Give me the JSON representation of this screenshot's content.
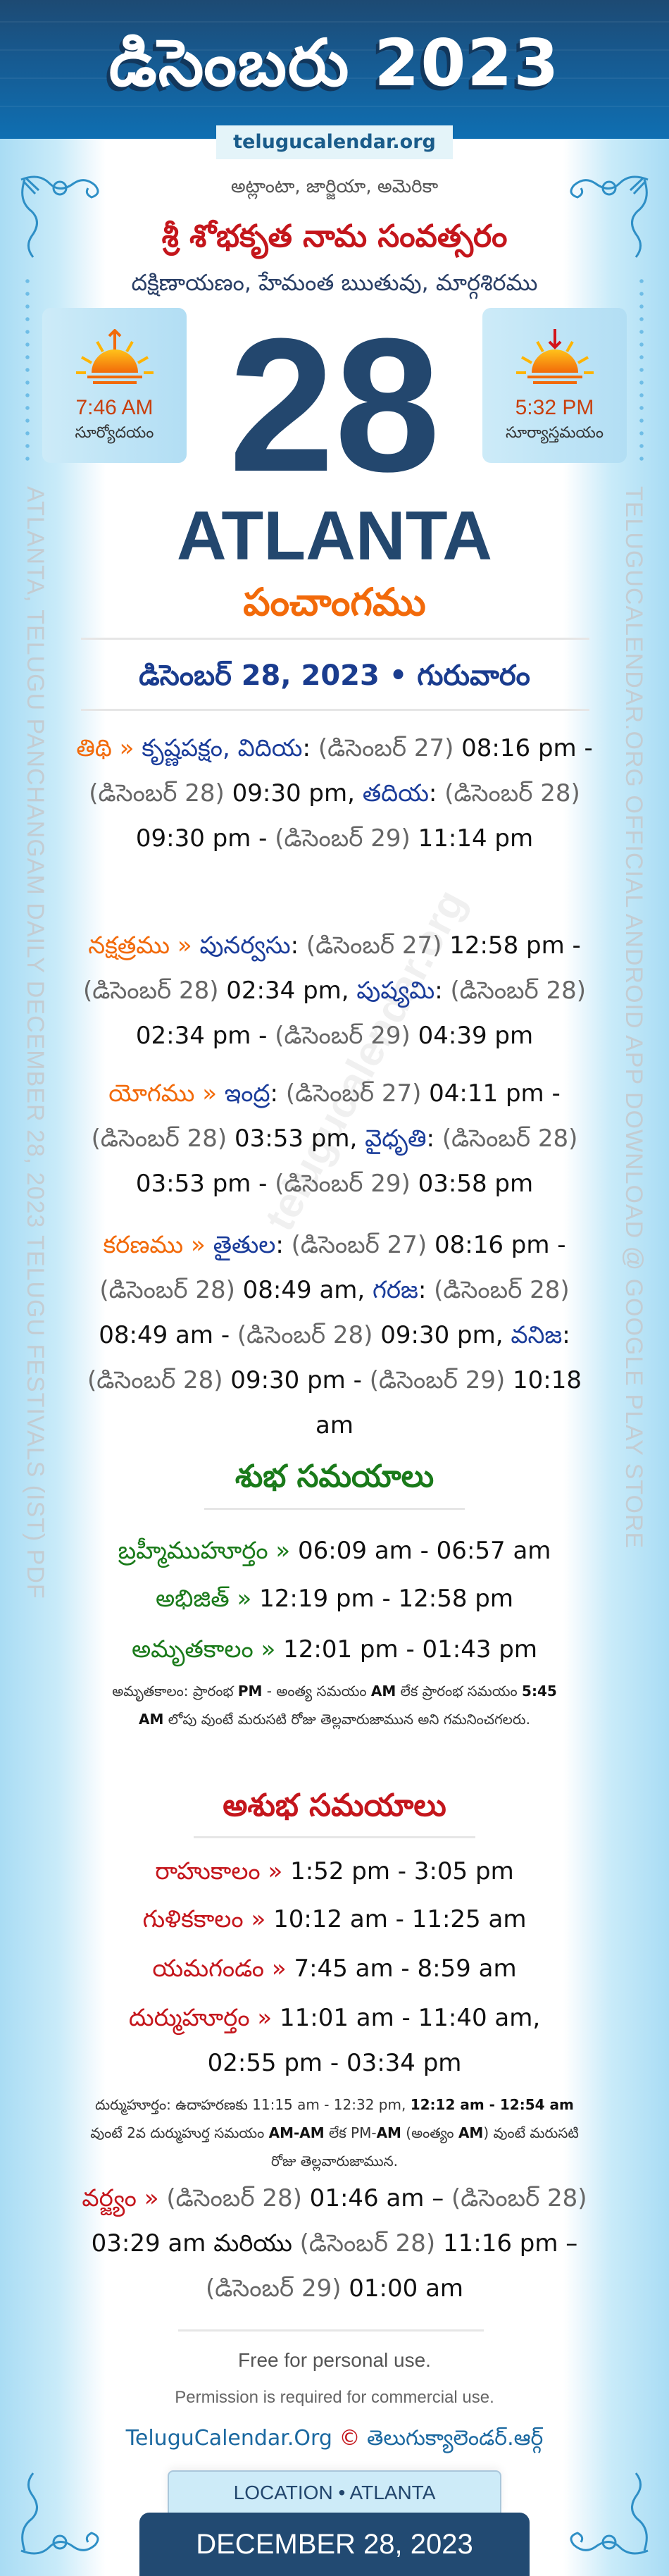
{
  "header": {
    "title": "డిసెంబరు 2023",
    "site": "telugucalendar.org"
  },
  "location_line": "అట్లాంటా, జార్జియా, అమెరికా",
  "samvatsaram": "శ్రీ శోభకృత నామ సంవత్సరం",
  "ayana": "దక్షిణాయణం, హేమంత ఋతువు, మార్గశిరము",
  "sunrise": {
    "time": "7:46 AM",
    "label": "సూర్యోదయం",
    "icon": "sunrise-icon"
  },
  "sunset": {
    "time": "5:32 PM",
    "label": "సూర్యాస్తమయం",
    "icon": "sunset-icon"
  },
  "day": "28",
  "city": "ATLANTA",
  "panchangam": "పంచాంగము",
  "date_heading": "డిసెంబర్ 28, 2023 • గురువారం",
  "side_text_left": "ATLANTA, TELUGU PANCHANGAM DAILY DECEMBER 28, 2023 TELUGU FESTIVALS (IST) PDF",
  "side_text_right": "TELUGUCALENDAR.ORG OFFICIAL ANDROID APP DOWNLOAD @ GOOGLE PLAY STORE",
  "watermark": "telugucalendar.org",
  "panchang": [
    {
      "key": "tithi",
      "segments": [
        [
          "lab",
          "తిథి"
        ],
        [
          "lab",
          " » "
        ],
        [
          "nm",
          "కృష్ణపక్షం, విదియ"
        ],
        [
          "tm",
          ": "
        ],
        [
          "dt",
          "(డిసెంబర్ 27)"
        ],
        [
          "tm",
          " 08:16 pm - "
        ],
        [
          "dt",
          "(డిసెంబర్ 28)"
        ],
        [
          "tm",
          " 09:30 pm, "
        ],
        [
          "nm",
          "తదియ"
        ],
        [
          "tm",
          ": "
        ],
        [
          "dt",
          "(డిసెంబర్ 28)"
        ],
        [
          "tm",
          " 09:30 pm - "
        ],
        [
          "dt",
          "(డిసెంబర్ 29)"
        ],
        [
          "tm",
          " 11:14 pm"
        ]
      ]
    },
    {
      "key": "nakshatram",
      "segments": [
        [
          "lab",
          "నక్షత్రము"
        ],
        [
          "lab",
          " » "
        ],
        [
          "nm",
          "పునర్వసు"
        ],
        [
          "tm",
          ": "
        ],
        [
          "dt",
          "(డిసెంబర్ 27)"
        ],
        [
          "tm",
          " 12:58 pm - "
        ],
        [
          "dt",
          "(డిసెంబర్ 28)"
        ],
        [
          "tm",
          " 02:34 pm, "
        ],
        [
          "nm",
          "పుష్యమి"
        ],
        [
          "tm",
          ": "
        ],
        [
          "dt",
          "(డిసెంబర్ 28)"
        ],
        [
          "tm",
          " 02:34 pm - "
        ],
        [
          "dt",
          "(డిసెంబర్ 29)"
        ],
        [
          "tm",
          " 04:39 pm"
        ]
      ]
    },
    {
      "key": "yogam",
      "segments": [
        [
          "lab",
          "యోగము"
        ],
        [
          "lab",
          " » "
        ],
        [
          "nm",
          "ఇంద్ర"
        ],
        [
          "tm",
          ": "
        ],
        [
          "dt",
          "(డిసెంబర్ 27)"
        ],
        [
          "tm",
          " 04:11 pm - "
        ],
        [
          "dt",
          "(డిసెంబర్ 28)"
        ],
        [
          "tm",
          " 03:53 pm, "
        ],
        [
          "nm",
          "వైధృతి"
        ],
        [
          "tm",
          ": "
        ],
        [
          "dt",
          "(డిసెంబర్ 28)"
        ],
        [
          "tm",
          " 03:53 pm - "
        ],
        [
          "dt",
          "(డిసెంబర్ 29)"
        ],
        [
          "tm",
          " 03:58 pm"
        ]
      ]
    },
    {
      "key": "karanam",
      "segments": [
        [
          "lab",
          "కరణము"
        ],
        [
          "lab",
          " » "
        ],
        [
          "nm",
          "తైతుల"
        ],
        [
          "tm",
          ": "
        ],
        [
          "dt",
          "(డిసెంబర్ 27)"
        ],
        [
          "tm",
          " 08:16 pm - "
        ],
        [
          "dt",
          "(డిసెంబర్ 28)"
        ],
        [
          "tm",
          " 08:49 am, "
        ],
        [
          "nm",
          "గరజ"
        ],
        [
          "tm",
          ": "
        ],
        [
          "dt",
          "(డిసెంబర్ 28)"
        ],
        [
          "tm",
          " 08:49 am - "
        ],
        [
          "dt",
          "(డిసెంబర్ 28)"
        ],
        [
          "tm",
          " 09:30 pm, "
        ],
        [
          "nm",
          "వనిజ"
        ],
        [
          "tm",
          ": "
        ],
        [
          "dt",
          "(డిసెంబర్ 28)"
        ],
        [
          "tm",
          " 09:30 pm - "
        ],
        [
          "dt",
          "(డిసెంబర్ 29)"
        ],
        [
          "tm",
          " 10:18 am"
        ]
      ]
    }
  ],
  "subha": {
    "heading": "శుభ సమయాలు",
    "items": [
      {
        "label": "బ్రహ్మీముహూర్తం",
        "time": "06:09 am - 06:57 am"
      },
      {
        "label": "అభిజిత్",
        "time": "12:19 pm - 12:58 pm"
      },
      {
        "label": "అమృతకాలం",
        "time": "12:01 pm - 01:43 pm"
      }
    ],
    "note": [
      [
        "",
        "అమృతకాలం: ప్రారంభ "
      ],
      [
        "b",
        "PM"
      ],
      [
        "",
        " - అంత్య సమయం "
      ],
      [
        "b",
        "AM"
      ],
      [
        "",
        " లేక ప్రారంభ సమయం "
      ],
      [
        "b",
        "5:45 AM"
      ],
      [
        "",
        " లోపు వుంటే మరుసటి రోజు తెల్లవారుజామున అని గమనించగలరు."
      ]
    ]
  },
  "asubha": {
    "heading": "అశుభ సమయాలు",
    "items": [
      {
        "label": "రాహుకాలం",
        "time": "1:52 pm - 3:05 pm"
      },
      {
        "label": "గుళికకాలం",
        "time": "10:12 am - 11:25 am"
      },
      {
        "label": "యమగండం",
        "time": "7:45 am - 8:59 am"
      },
      {
        "label": "దుర్ముహూర్తం",
        "time": "11:01 am - 11:40 am, 02:55 pm - 03:34 pm"
      }
    ],
    "note": [
      [
        "",
        "దుర్ముహూర్తం: ఉదాహరణకు 11:15 am - 12:32 pm, "
      ],
      [
        "b",
        "12:12 am - 12:54 am"
      ],
      [
        "",
        " వుంటే 2వ దుర్ముహుర్త సమయం "
      ],
      [
        "b",
        "AM-AM"
      ],
      [
        "",
        " లేక PM-"
      ],
      [
        "b",
        "AM"
      ],
      [
        "",
        " (అంత్యం "
      ],
      [
        "b",
        "AM"
      ],
      [
        "",
        ") వుంటే మరుసటి రోజు తెల్లవారుజామున."
      ]
    ],
    "varjyam": [
      [
        "asu-lab",
        "వర్జ్యం"
      ],
      [
        "asu-lab",
        " » "
      ],
      [
        "dt",
        "(డిసెంబర్ 28)"
      ],
      [
        "tm",
        " 01:46 am – "
      ],
      [
        "dt",
        "(డిసెంబర్ 28)"
      ],
      [
        "tm",
        " 03:29 am "
      ],
      [
        "tm",
        "మరియు"
      ],
      [
        "tm",
        " "
      ],
      [
        "dt",
        "(డిసెంబర్ 28)"
      ],
      [
        "tm",
        " 11:16 pm – "
      ],
      [
        "dt",
        "(డిసెంబర్ 29)"
      ],
      [
        "tm",
        " 01:00 am"
      ]
    ]
  },
  "footer": {
    "free": "Free for personal use.",
    "permission": "Permission is required for commercial use.",
    "brand_en": "TeluguCalendar.Org",
    "copyright": "©",
    "brand_te": "తెలుగుక్యాలెండర్.ఆర్గ్",
    "location_label": "LOCATION • ATLANTA",
    "date_label": "DECEMBER 28, 2023"
  },
  "colors": {
    "header": "#17598f",
    "accent_orange": "#f26a0a",
    "red": "#c4161c",
    "green": "#1a7a1a",
    "navy": "#23476e",
    "name_blue": "#1a3c9a"
  }
}
